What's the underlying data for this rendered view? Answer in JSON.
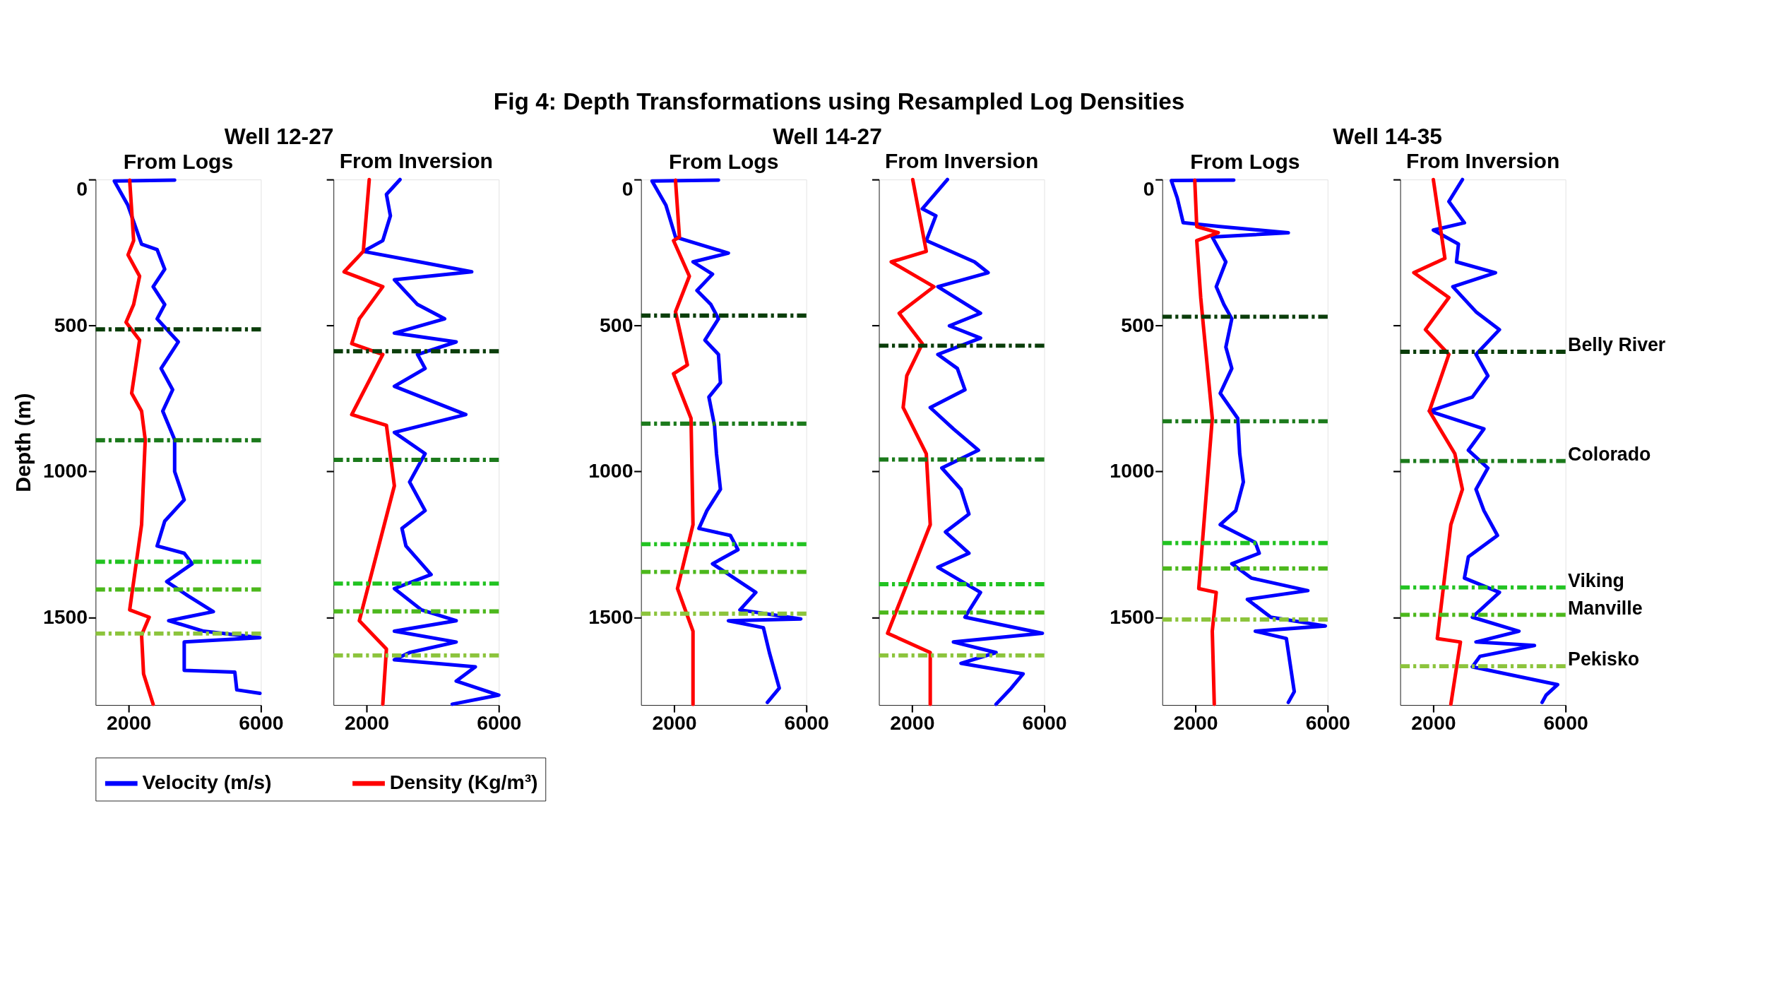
{
  "chart_data": [
    {
      "type": "line",
      "title": "Well 12-27",
      "subtitle": "From Logs",
      "ylabel": "Depth (m)",
      "annotations": [
        "Fig 4: Depth Transformations using Resampled Log Densities"
      ],
      "legend": "bottom",
      "xlim": [
        1000,
        6000
      ],
      "ylim": [
        1800,
        0
      ],
      "xticks": [
        2000,
        6000
      ],
      "yticks": [
        0,
        500,
        1000,
        1500
      ],
      "grid": false,
      "series": [
        {
          "name": "Velocity (m/s)",
          "color": "#0000ff",
          "x": [
            3390,
            1565,
            1976,
            2388,
            2860,
            3090,
            2740,
            3090,
            2860,
            3500,
            2980,
            3330,
            3030,
            3390,
            3390,
            3680,
            3090,
            2860,
            3680,
            3920,
            3150,
            3800,
            4560,
            3210,
            4270,
            5970,
            3680,
            3680,
            5210,
            5270,
            5970
          ],
          "values": [
            2,
            5,
            88,
            221,
            240,
            307,
            367,
            428,
            477,
            556,
            647,
            720,
            793,
            891,
            1000,
            1097,
            1170,
            1255,
            1280,
            1316,
            1377,
            1426,
            1480,
            1511,
            1547,
            1569,
            1584,
            1681,
            1687,
            1748,
            1760
          ]
        },
        {
          "name": "Density (Kg/m³)",
          "color": "#ff0000",
          "x": [
            2030,
            2150,
            1980,
            2330,
            2150,
            1920,
            2330,
            2090,
            2390,
            2500,
            2390,
            2030,
            2620,
            2390,
            2450,
            2740
          ],
          "values": [
            2,
            209,
            258,
            331,
            428,
            489,
            550,
            732,
            793,
            891,
            1182,
            1474,
            1499,
            1560,
            1693,
            1797
          ]
        }
      ],
      "ref_lines": [
        {
          "axis": "y",
          "value": 513,
          "color": "#0a3d0a",
          "line_style": "dashed"
        },
        {
          "axis": "y",
          "value": 893,
          "color": "#1b7a1b",
          "line_style": "dashed"
        },
        {
          "axis": "y",
          "value": 1309,
          "color": "#22c322",
          "line_style": "dashed"
        },
        {
          "axis": "y",
          "value": 1404,
          "color": "#4cb81c",
          "line_style": "dashed"
        },
        {
          "axis": "y",
          "value": 1555,
          "color": "#8cc43c",
          "line_style": "dashed"
        }
      ]
    },
    {
      "type": "line",
      "subtitle": "From Inversion",
      "xlim": [
        1000,
        6000
      ],
      "ylim": [
        1800,
        0
      ],
      "xticks": [
        2000,
        6000
      ],
      "yticks": [
        0,
        500,
        1000,
        1500
      ],
      "tick_labels": "x",
      "grid": false,
      "series": [
        {
          "name": "Velocity (m/s)",
          "color": "#0000ff",
          "x": [
            3010,
            2600,
            2720,
            2490,
            1900,
            3600,
            5180,
            2840,
            3540,
            4360,
            2840,
            4710,
            3540,
            3770,
            2840,
            5000,
            2840,
            3770,
            3300,
            3770,
            3070,
            3190,
            3950,
            2840,
            3660,
            4710,
            2840,
            4710,
            3300,
            2840,
            5290,
            4710,
            6000,
            4590
          ],
          "values": [
            0,
            51,
            124,
            209,
            246,
            282,
            316,
            343,
            428,
            477,
            526,
            556,
            599,
            647,
            708,
            805,
            866,
            939,
            1036,
            1134,
            1195,
            1255,
            1353,
            1401,
            1474,
            1511,
            1547,
            1584,
            1620,
            1645,
            1669,
            1718,
            1766,
            1797
          ]
        },
        {
          "name": "Density (Kg/m³)",
          "color": "#ff0000",
          "x": [
            2080,
            1900,
            1320,
            2490,
            1780,
            1550,
            2490,
            1550,
            2600,
            2840,
            1780,
            2600,
            2490
          ],
          "values": [
            0,
            246,
            316,
            367,
            477,
            562,
            599,
            805,
            842,
            1049,
            1511,
            1608,
            1797
          ]
        }
      ],
      "ref_lines": [
        {
          "axis": "y",
          "value": 588,
          "color": "#0a3d0a",
          "line_style": "dashed"
        },
        {
          "axis": "y",
          "value": 960,
          "color": "#1b7a1b",
          "line_style": "dashed"
        },
        {
          "axis": "y",
          "value": 1384,
          "color": "#22c322",
          "line_style": "dashed"
        },
        {
          "axis": "y",
          "value": 1479,
          "color": "#4cb81c",
          "line_style": "dashed"
        },
        {
          "axis": "y",
          "value": 1630,
          "color": "#8cc43c",
          "line_style": "dashed"
        }
      ]
    },
    {
      "type": "line",
      "title": "Well 14-27",
      "subtitle": "From Logs",
      "xlim": [
        1000,
        6000
      ],
      "ylim": [
        1800,
        0
      ],
      "xticks": [
        2000,
        6000
      ],
      "yticks": [
        0,
        500,
        1000,
        1500
      ],
      "grid": false,
      "series": [
        {
          "name": "Velocity (m/s)",
          "color": "#0000ff",
          "x": [
            3340,
            1330,
            1750,
            2040,
            3640,
            2570,
            3160,
            2690,
            3110,
            3340,
            2930,
            3340,
            3400,
            3050,
            3220,
            3280,
            3400,
            2990,
            2750,
            3700,
            3930,
            3160,
            4470,
            3990,
            5830,
            3640,
            4700,
            4880,
            5180,
            4820
          ],
          "values": [
            2,
            5,
            88,
            197,
            252,
            282,
            324,
            380,
            428,
            477,
            550,
            599,
            696,
            745,
            842,
            939,
            1061,
            1134,
            1195,
            1219,
            1268,
            1316,
            1414,
            1474,
            1505,
            1511,
            1535,
            1620,
            1742,
            1791
          ]
        },
        {
          "name": "Density (Kg/m³)",
          "color": "#ff0000",
          "x": [
            2040,
            2160,
            1980,
            2460,
            2040,
            2400,
            1980,
            2510,
            2570,
            2100,
            2570,
            2570
          ],
          "values": [
            2,
            197,
            209,
            331,
            453,
            635,
            665,
            818,
            1182,
            1401,
            1547,
            1797
          ]
        }
      ],
      "ref_lines": [
        {
          "axis": "y",
          "value": 466,
          "color": "#0a3d0a",
          "line_style": "dashed"
        },
        {
          "axis": "y",
          "value": 836,
          "color": "#1b7a1b",
          "line_style": "dashed"
        },
        {
          "axis": "y",
          "value": 1249,
          "color": "#22c322",
          "line_style": "dashed"
        },
        {
          "axis": "y",
          "value": 1344,
          "color": "#4cb81c",
          "line_style": "dashed"
        },
        {
          "axis": "y",
          "value": 1487,
          "color": "#8cc43c",
          "line_style": "dashed"
        }
      ]
    },
    {
      "type": "line",
      "subtitle": "From Inversion",
      "xlim": [
        1000,
        6000
      ],
      "ylim": [
        1800,
        0
      ],
      "xticks": [
        2000,
        6000
      ],
      "yticks": [
        0,
        500,
        1000,
        1500
      ],
      "tick_labels": "x",
      "grid": false,
      "series": [
        {
          "name": "Velocity (m/s)",
          "color": "#0000ff",
          "x": [
            3070,
            2310,
            2720,
            2430,
            3890,
            4300,
            2780,
            4070,
            3130,
            4070,
            2780,
            3370,
            3600,
            2550,
            3250,
            4010,
            2900,
            3480,
            3720,
            3010,
            3720,
            2780,
            4070,
            3600,
            5940,
            3250,
            4540,
            3480,
            5360,
            5000,
            4540
          ],
          "values": [
            0,
            100,
            124,
            209,
            282,
            319,
            367,
            458,
            501,
            543,
            599,
            647,
            720,
            781,
            854,
            927,
            988,
            1061,
            1146,
            1207,
            1280,
            1328,
            1414,
            1499,
            1554,
            1584,
            1620,
            1657,
            1693,
            1742,
            1797
          ]
        },
        {
          "name": "Density (Kg/m³)",
          "color": "#ff0000",
          "x": [
            2020,
            2430,
            1370,
            2660,
            1610,
            2310,
            1840,
            1730,
            2430,
            2550,
            1260,
            2550,
            2550
          ],
          "values": [
            0,
            246,
            282,
            367,
            458,
            562,
            672,
            781,
            939,
            1182,
            1554,
            1620,
            1797
          ]
        }
      ],
      "ref_lines": [
        {
          "axis": "y",
          "value": 569,
          "color": "#0a3d0a",
          "line_style": "dashed"
        },
        {
          "axis": "y",
          "value": 959,
          "color": "#1b7a1b",
          "line_style": "dashed"
        },
        {
          "axis": "y",
          "value": 1386,
          "color": "#22c322",
          "line_style": "dashed"
        },
        {
          "axis": "y",
          "value": 1483,
          "color": "#4cb81c",
          "line_style": "dashed"
        },
        {
          "axis": "y",
          "value": 1630,
          "color": "#8cc43c",
          "line_style": "dashed"
        }
      ]
    },
    {
      "type": "line",
      "title": "Well 14-35",
      "subtitle": "From Logs",
      "xlim": [
        1000,
        6000
      ],
      "ylim": [
        1800,
        0
      ],
      "xticks": [
        2000,
        6000
      ],
      "yticks": [
        0,
        500,
        1000,
        1500
      ],
      "grid": false,
      "series": [
        {
          "name": "Velocity (m/s)",
          "color": "#0000ff",
          "x": [
            3160,
            1270,
            1450,
            1630,
            2750,
            4810,
            2510,
            2920,
            2630,
            2860,
            3100,
            2920,
            3100,
            2750,
            3280,
            3340,
            3450,
            3220,
            2750,
            3810,
            3930,
            3100,
            3690,
            5400,
            3570,
            4280,
            5930,
            3810,
            4750,
            4990,
            4810
          ],
          "values": [
            2,
            3,
            63,
            148,
            161,
            182,
            197,
            282,
            367,
            428,
            477,
            574,
            647,
            732,
            818,
            939,
            1036,
            1134,
            1182,
            1243,
            1280,
            1316,
            1365,
            1408,
            1438,
            1499,
            1529,
            1547,
            1572,
            1754,
            1791
          ]
        },
        {
          "name": "Density (Kg/m³)",
          "color": "#ff0000",
          "x": [
            1980,
            2040,
            2690,
            2040,
            2160,
            2220,
            2510,
            2100,
            2630,
            2510,
            2570
          ],
          "values": [
            2,
            161,
            182,
            209,
            404,
            477,
            818,
            1401,
            1414,
            1547,
            1797
          ]
        }
      ],
      "ref_lines": [
        {
          "axis": "y",
          "value": 470,
          "color": "#0a3d0a",
          "line_style": "dashed"
        },
        {
          "axis": "y",
          "value": 828,
          "color": "#1b7a1b",
          "line_style": "dashed"
        },
        {
          "axis": "y",
          "value": 1245,
          "color": "#22c322",
          "line_style": "dashed"
        },
        {
          "axis": "y",
          "value": 1332,
          "color": "#4cb81c",
          "line_style": "dashed"
        },
        {
          "axis": "y",
          "value": 1507,
          "color": "#8cc43c",
          "line_style": "dashed"
        }
      ]
    },
    {
      "type": "line",
      "subtitle": "From Inversion",
      "xlim": [
        1000,
        6000
      ],
      "ylim": [
        1800,
        0
      ],
      "xticks": [
        2000,
        6000
      ],
      "yticks": [
        0,
        500,
        1000,
        1500
      ],
      "tick_labels": "x",
      "grid": false,
      "series": [
        {
          "name": "Velocity (m/s)",
          "color": "#0000ff",
          "x": [
            2880,
            2470,
            2940,
            2000,
            2760,
            2700,
            3880,
            2590,
            3290,
            4000,
            3290,
            3650,
            3180,
            1880,
            3530,
            3060,
            3650,
            3290,
            3530,
            3940,
            3060,
            2940,
            4000,
            3180,
            4590,
            3290,
            5060,
            3410,
            3180,
            5760,
            5410,
            5290
          ],
          "values": [
            0,
            75,
            148,
            173,
            221,
            282,
            319,
            367,
            453,
            514,
            599,
            672,
            745,
            793,
            854,
            927,
            988,
            1061,
            1134,
            1219,
            1292,
            1365,
            1414,
            1499,
            1547,
            1584,
            1596,
            1633,
            1669,
            1730,
            1766,
            1791
          ]
        },
        {
          "name": "Density (Kg/m³)",
          "color": "#ff0000",
          "x": [
            2000,
            2350,
            1410,
            2470,
            1760,
            2470,
            1880,
            2650,
            2880,
            2530,
            2120,
            2820,
            2530
          ],
          "values": [
            0,
            270,
            319,
            404,
            514,
            599,
            793,
            939,
            1061,
            1182,
            1572,
            1584,
            1797
          ]
        }
      ],
      "ref_lines": [
        {
          "axis": "y",
          "value": 590,
          "color": "#0a3d0a",
          "label": "Belly River",
          "line_style": "dashed"
        },
        {
          "axis": "y",
          "value": 964,
          "color": "#1b7a1b",
          "label": "Colorado",
          "line_style": "dashed"
        },
        {
          "axis": "y",
          "value": 1397,
          "color": "#22c322",
          "label": "Viking",
          "line_style": "dashed"
        },
        {
          "axis": "y",
          "value": 1491,
          "color": "#4cb81c",
          "label": "Manville",
          "line_style": "dashed"
        },
        {
          "axis": "y",
          "value": 1667,
          "color": "#8cc43c",
          "label": "Pekisko",
          "line_style": "dashed"
        }
      ]
    }
  ]
}
